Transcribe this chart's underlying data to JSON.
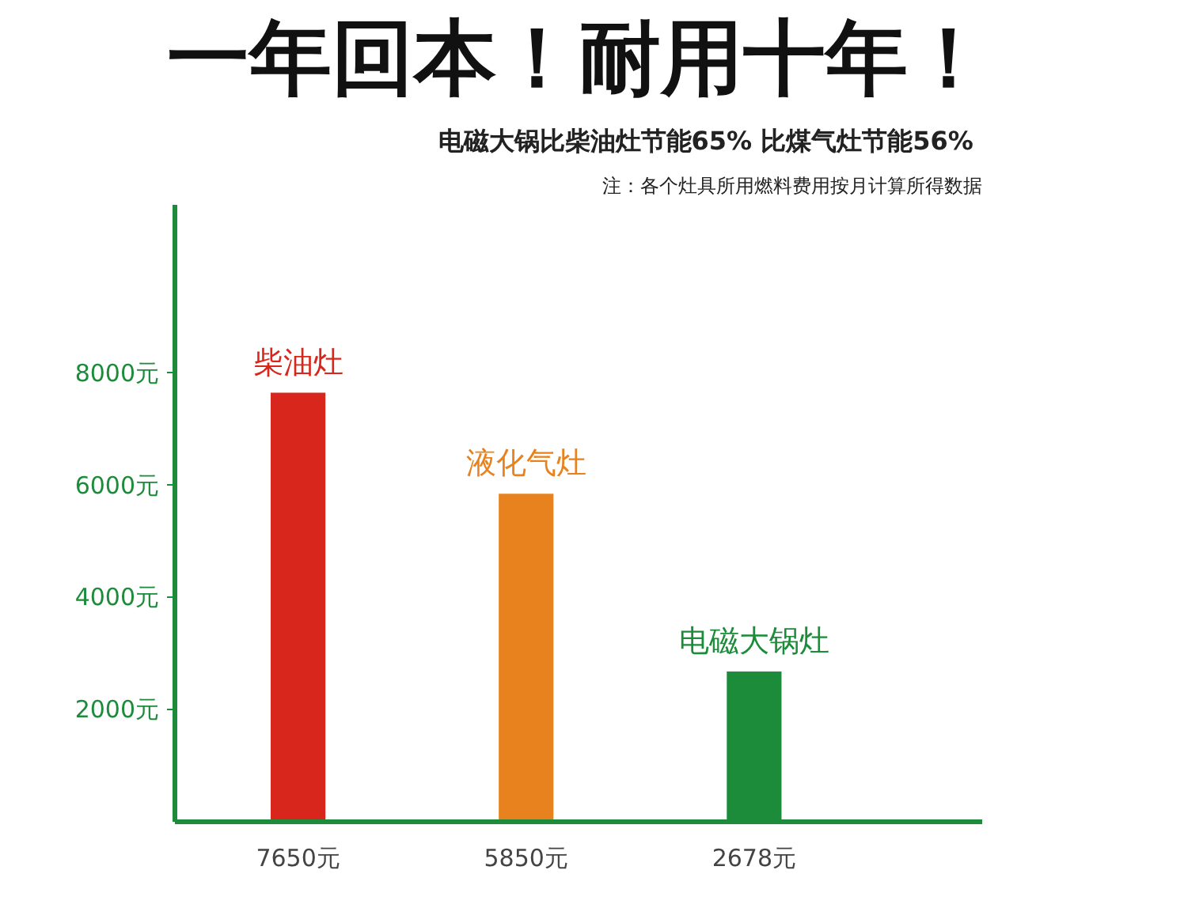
{
  "chart_data": {
    "type": "bar",
    "title": "一年回本！耐用十年！",
    "subtitle": "电磁大锅比柴油灶节能65%  比煤气灶节能56%",
    "annotations": [
      "注：各个灶具所用燃料费用按月计算所得数据"
    ],
    "categories": [
      "柴油灶",
      "液化气灶",
      "电磁大锅灶"
    ],
    "values": [
      7650,
      5850,
      2678
    ],
    "colors": [
      "#d9261c",
      "#e8821e",
      "#1c8c3a"
    ],
    "value_labels": [
      "7650元",
      "5850元",
      "2678元"
    ],
    "ylim": [
      0,
      11000
    ],
    "yticks": [
      {
        "value": 2000,
        "label": "2000元"
      },
      {
        "value": 4000,
        "label": "4000元"
      },
      {
        "value": 6000,
        "label": "6000元"
      },
      {
        "value": 8000,
        "label": "8000元"
      }
    ],
    "grid": false
  }
}
